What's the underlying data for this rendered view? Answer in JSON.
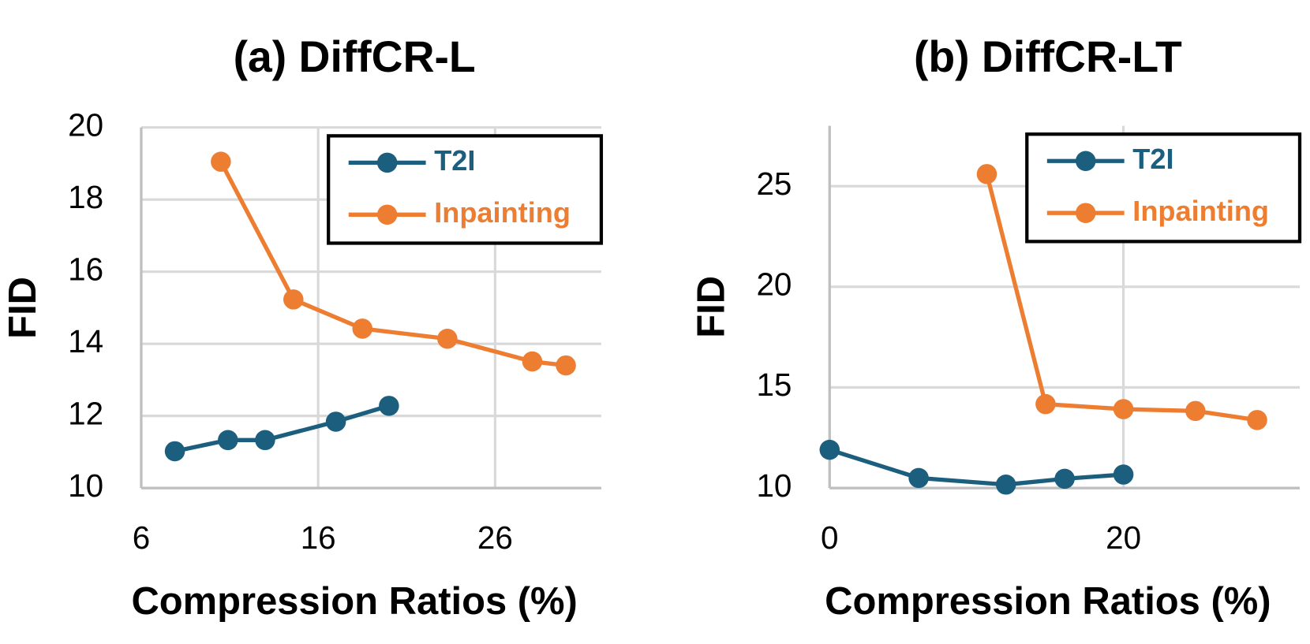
{
  "chart_data": [
    {
      "type": "line",
      "title": "(a) DiffCR-L",
      "x_label": "Compression Ratios (%)",
      "y_label": "FID",
      "xlim": [
        6,
        32
      ],
      "xticks": [
        6,
        16,
        26
      ],
      "ylim": [
        10,
        20
      ],
      "yticks": [
        10,
        12,
        14,
        16,
        18,
        20
      ],
      "grid": true,
      "legend": "upper right",
      "series": [
        {
          "name": "T2I",
          "color": "#1b5e7e",
          "x": [
            7.9,
            10.9,
            13,
            17,
            20
          ],
          "values": [
            11.02,
            11.33,
            11.33,
            11.84,
            12.28
          ]
        },
        {
          "name": "Inpainting",
          "color": "#ed7d31",
          "x": [
            10.5,
            14.6,
            18.5,
            23.3,
            28.1,
            30
          ],
          "values": [
            19.05,
            15.23,
            14.42,
            14.14,
            13.51,
            13.4
          ]
        }
      ]
    },
    {
      "type": "line",
      "title": "(b) DiffCR-LT",
      "x_label": "Compression Ratios (%)",
      "y_label": "FID",
      "xlim": [
        0,
        32
      ],
      "xticks": [
        0,
        20
      ],
      "ylim": [
        10,
        28
      ],
      "yticks": [
        10,
        15,
        20,
        25
      ],
      "grid": true,
      "legend": "upper right",
      "series": [
        {
          "name": "T2I",
          "color": "#1b5e7e",
          "x": [
            0,
            6.06,
            12,
            16,
            20
          ],
          "values": [
            11.9,
            10.5,
            10.17,
            10.46,
            10.67
          ]
        },
        {
          "name": "Inpainting",
          "color": "#ed7d31",
          "x": [
            10.7,
            14.7,
            20,
            24.9,
            29.1
          ],
          "values": [
            25.6,
            14.17,
            13.92,
            13.83,
            13.38
          ]
        }
      ]
    }
  ]
}
